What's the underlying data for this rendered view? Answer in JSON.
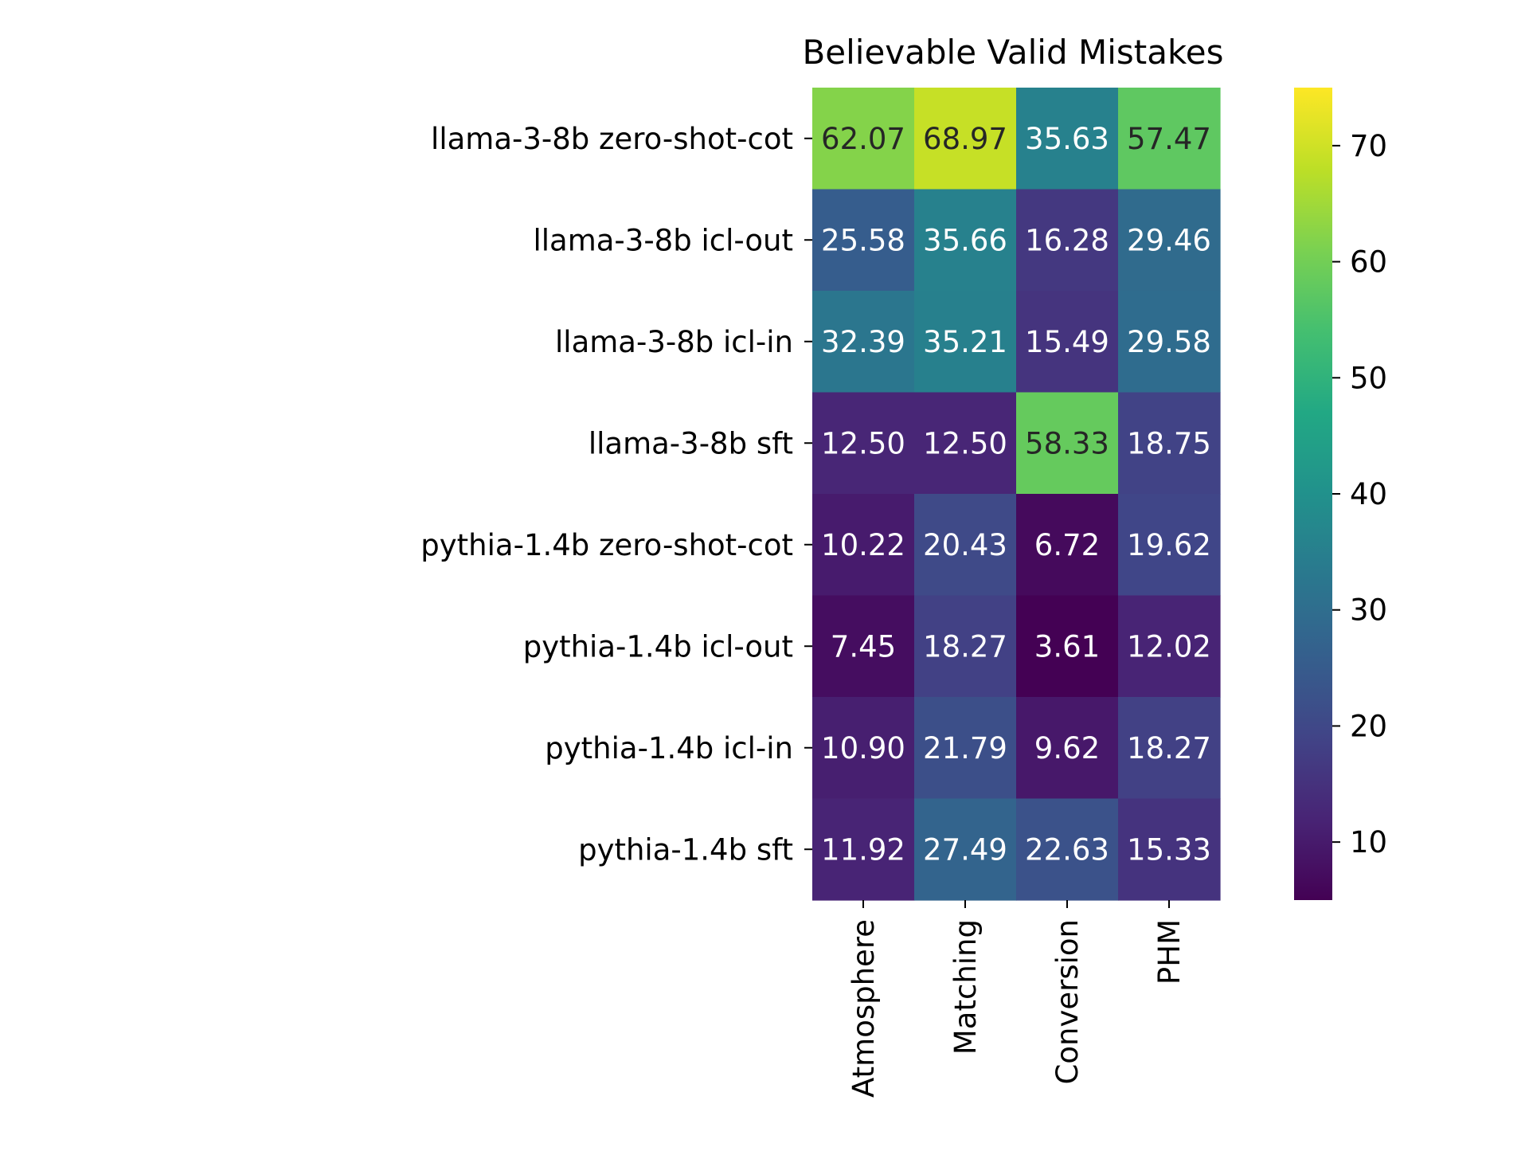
{
  "chart_data": {
    "type": "heatmap",
    "title": "Believable Valid Mistakes",
    "rows": [
      "llama-3-8b zero-shot-cot",
      "llama-3-8b icl-out",
      "llama-3-8b icl-in",
      "llama-3-8b sft",
      "pythia-1.4b zero-shot-cot",
      "pythia-1.4b icl-out",
      "pythia-1.4b icl-in",
      "pythia-1.4b sft"
    ],
    "columns": [
      "Atmosphere",
      "Matching",
      "Conversion",
      "PHM"
    ],
    "values": [
      [
        62.07,
        68.97,
        35.63,
        57.47
      ],
      [
        25.58,
        35.66,
        16.28,
        29.46
      ],
      [
        32.39,
        35.21,
        15.49,
        29.58
      ],
      [
        12.5,
        12.5,
        58.33,
        18.75
      ],
      [
        10.22,
        20.43,
        6.72,
        19.62
      ],
      [
        7.45,
        18.27,
        3.61,
        12.02
      ],
      [
        10.9,
        21.79,
        9.62,
        18.27
      ],
      [
        11.92,
        27.49,
        22.63,
        15.33
      ]
    ],
    "value_labels": [
      [
        "62.07",
        "68.97",
        "35.63",
        "57.47"
      ],
      [
        "25.58",
        "35.66",
        "16.28",
        "29.46"
      ],
      [
        "32.39",
        "35.21",
        "15.49",
        "29.58"
      ],
      [
        "12.50",
        "12.50",
        "58.33",
        "18.75"
      ],
      [
        "10.22",
        "20.43",
        "6.72",
        "19.62"
      ],
      [
        "7.45",
        "18.27",
        "3.61",
        "12.02"
      ],
      [
        "10.90",
        "21.79",
        "9.62",
        "18.27"
      ],
      [
        "11.92",
        "27.49",
        "22.63",
        "15.33"
      ]
    ],
    "colormap": "viridis",
    "color_range": [
      5,
      75
    ],
    "colorbar_ticks": [
      10,
      20,
      30,
      40,
      50,
      60,
      70
    ],
    "colorbar_tick_labels": [
      "10",
      "20",
      "30",
      "40",
      "50",
      "60",
      "70"
    ],
    "grid": false,
    "legend": "colorbar-right"
  }
}
